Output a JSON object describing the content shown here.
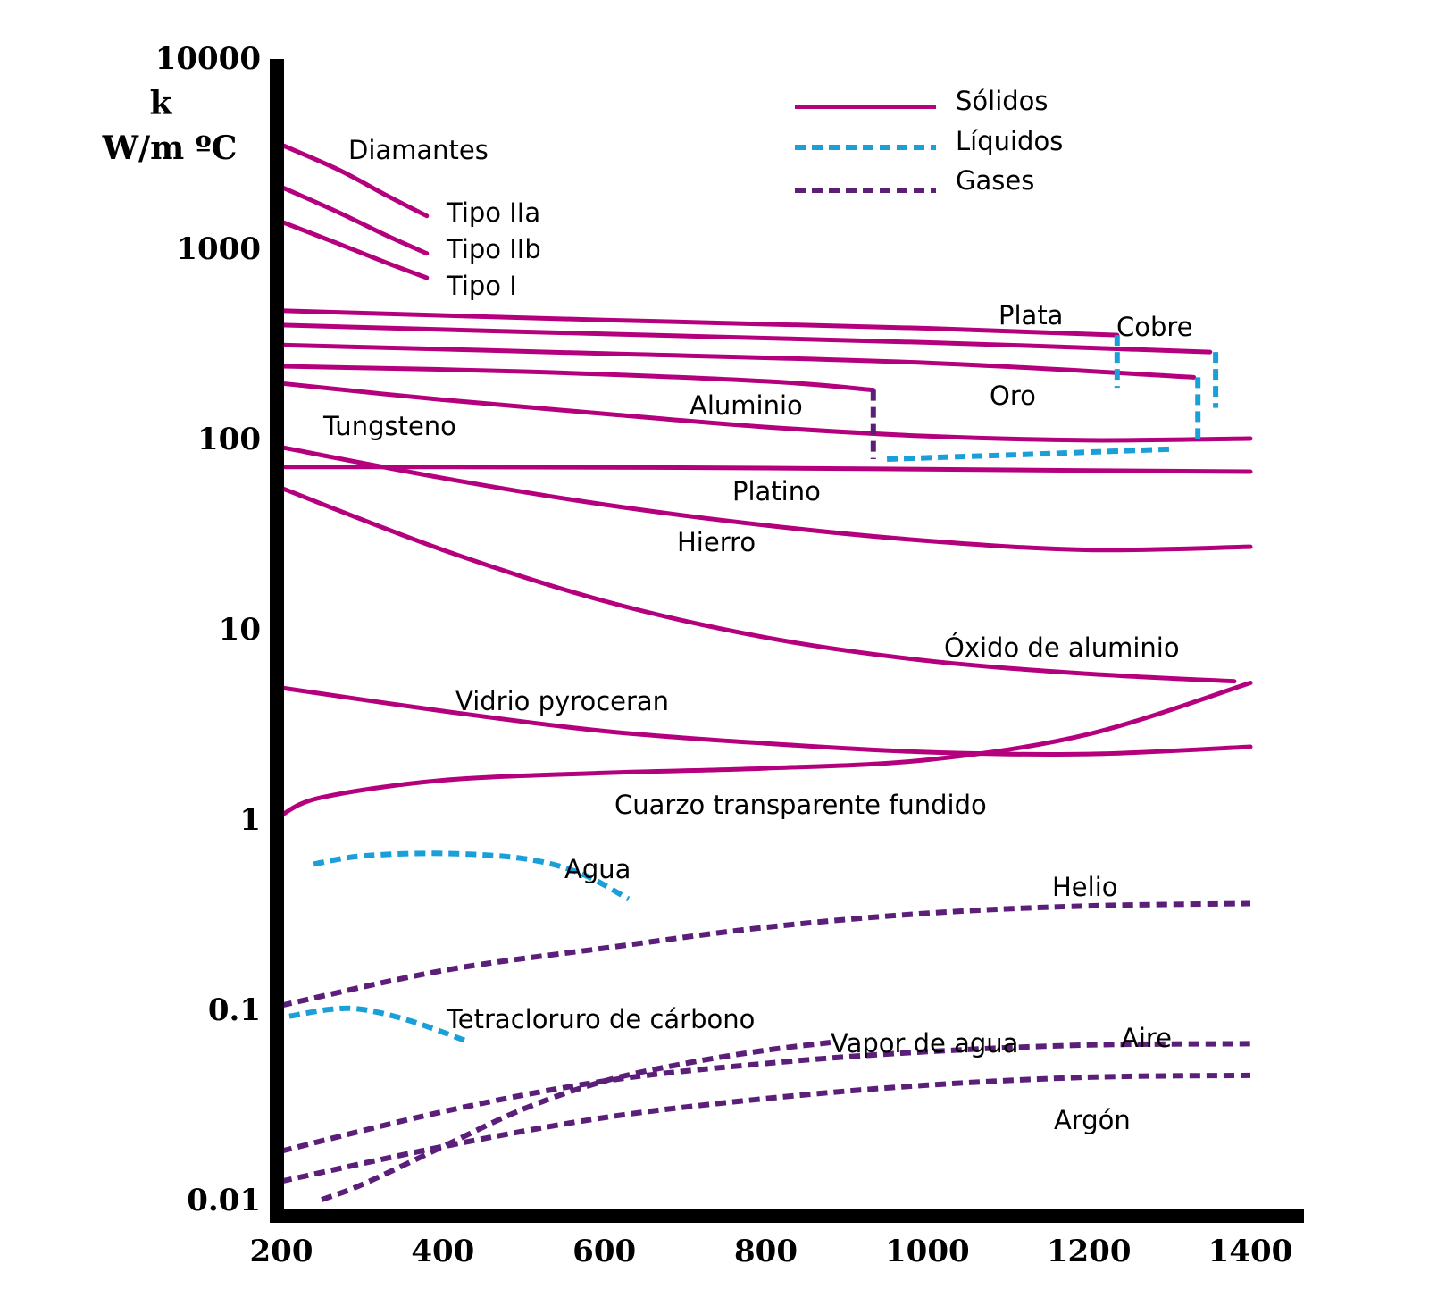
{
  "chart_data": {
    "type": "line",
    "title": "",
    "xlabel": "",
    "ylabel_line1": "k",
    "ylabel_line2": "W/m ºC",
    "y_scale": "log",
    "xlim": [
      200,
      1400
    ],
    "ylim": [
      0.01,
      10000
    ],
    "x_ticks": [
      200,
      400,
      600,
      800,
      1000,
      1200,
      1400
    ],
    "x_tick_labels": [
      "200",
      "400",
      "600",
      "800",
      "1000",
      "1200",
      "1400"
    ],
    "y_ticks": [
      0.01,
      0.1,
      1,
      10,
      100,
      1000,
      10000
    ],
    "y_tick_labels": [
      "0.01",
      "0.1",
      "1",
      "10",
      "100",
      "1000",
      "10000"
    ],
    "grid": false,
    "legend_position": "top-right",
    "legend": [
      {
        "label": "Sólidos",
        "kind": "solid"
      },
      {
        "label": "Líquidos",
        "kind": "liquid"
      },
      {
        "label": "Gases",
        "kind": "gas"
      }
    ],
    "colors": {
      "solid": "#b5007e",
      "liquid": "#1b9fd9",
      "gas": "#5b1f7a",
      "axis": "#000000"
    },
    "series": [
      {
        "name": "Tipo IIa",
        "kind": "solid",
        "x": [
          200,
          270,
          330,
          380
        ],
        "y": [
          3500,
          2600,
          1900,
          1480
        ]
      },
      {
        "name": "Tipo IIb",
        "kind": "solid",
        "x": [
          200,
          270,
          330,
          380
        ],
        "y": [
          2100,
          1550,
          1170,
          940
        ]
      },
      {
        "name": "Tipo I",
        "kind": "solid",
        "x": [
          200,
          270,
          330,
          380
        ],
        "y": [
          1380,
          1060,
          840,
          700
        ]
      },
      {
        "name": "Plata",
        "kind": "solid",
        "x": [
          200,
          600,
          1000,
          1235
        ],
        "y": [
          470,
          420,
          380,
          350
        ]
      },
      {
        "name": "Cobre",
        "kind": "solid",
        "x": [
          200,
          600,
          1000,
          1350
        ],
        "y": [
          395,
          355,
          320,
          285
        ]
      },
      {
        "name": "Oro",
        "kind": "solid",
        "x": [
          200,
          600,
          1000,
          1330
        ],
        "y": [
          310,
          280,
          250,
          210
        ]
      },
      {
        "name": "Aluminio",
        "kind": "solid",
        "x": [
          200,
          500,
          800,
          933
        ],
        "y": [
          240,
          225,
          200,
          180
        ]
      },
      {
        "name": "Tungsteno",
        "kind": "solid",
        "x": [
          200,
          400,
          600,
          800,
          1000,
          1200,
          1400
        ],
        "y": [
          195,
          160,
          135,
          115,
          103,
          98,
          100
        ]
      },
      {
        "name": "Platino",
        "kind": "solid",
        "x": [
          200,
          400,
          800,
          1200,
          1400
        ],
        "y": [
          71,
          71,
          70,
          68,
          67
        ]
      },
      {
        "name": "Hierro",
        "kind": "solid",
        "x": [
          200,
          400,
          600,
          800,
          1000,
          1200,
          1400
        ],
        "y": [
          90,
          62,
          45,
          35,
          29,
          26,
          27
        ]
      },
      {
        "name": "Óxido de aluminio",
        "kind": "solid",
        "x": [
          200,
          400,
          600,
          800,
          1000,
          1200,
          1380
        ],
        "y": [
          55,
          26,
          14,
          9,
          6.8,
          5.8,
          5.3
        ]
      },
      {
        "name": "Vidrio pyroceran",
        "kind": "solid",
        "x": [
          200,
          400,
          600,
          800,
          1000,
          1200,
          1400
        ],
        "y": [
          4.9,
          3.7,
          2.9,
          2.5,
          2.25,
          2.2,
          2.4
        ]
      },
      {
        "name": "Cuarzo transparente fundido",
        "kind": "solid",
        "x": [
          200,
          250,
          400,
          600,
          800,
          1000,
          1200,
          1400
        ],
        "y": [
          1.05,
          1.3,
          1.6,
          1.75,
          1.85,
          2.05,
          2.8,
          5.2
        ]
      },
      {
        "name": "Agua",
        "kind": "liquid",
        "x": [
          240,
          300,
          400,
          500,
          570,
          630
        ],
        "y": [
          0.58,
          0.64,
          0.66,
          0.62,
          0.52,
          0.38
        ]
      },
      {
        "name": "Tetracloruro de cárbono",
        "kind": "liquid",
        "x": [
          210,
          260,
          300,
          360,
          430
        ],
        "y": [
          0.092,
          0.1,
          0.1,
          0.087,
          0.068
        ]
      },
      {
        "name": "Helio",
        "kind": "gas",
        "x": [
          200,
          400,
          600,
          800,
          1000,
          1200,
          1400
        ],
        "y": [
          0.105,
          0.16,
          0.21,
          0.27,
          0.32,
          0.35,
          0.36
        ]
      },
      {
        "name": "Vapor de agua",
        "kind": "gas",
        "x": [
          250,
          300,
          400,
          500,
          600,
          700,
          800,
          880
        ],
        "y": [
          0.01,
          0.012,
          0.019,
          0.03,
          0.042,
          0.052,
          0.061,
          0.067
        ]
      },
      {
        "name": "Aire",
        "kind": "gas",
        "x": [
          200,
          400,
          600,
          800,
          1000,
          1200,
          1400
        ],
        "y": [
          0.018,
          0.029,
          0.042,
          0.052,
          0.06,
          0.065,
          0.066
        ]
      },
      {
        "name": "Argón",
        "kind": "gas",
        "x": [
          200,
          400,
          600,
          800,
          1000,
          1200,
          1400
        ],
        "y": [
          0.0125,
          0.019,
          0.027,
          0.034,
          0.04,
          0.044,
          0.045
        ]
      }
    ],
    "connectors": [
      {
        "of": "Plata",
        "kind": "liquid",
        "x": [
          1235,
          1235
        ],
        "y": [
          350,
          185
        ]
      },
      {
        "of": "Cobre",
        "kind": "liquid",
        "x": [
          1357,
          1357
        ],
        "y": [
          285,
          145
        ]
      },
      {
        "of": "Oro",
        "kind": "liquid",
        "x": [
          1335,
          1335
        ],
        "y": [
          210,
          100
        ]
      },
      {
        "of": "Aluminio",
        "kind": "gas",
        "x": [
          933,
          933
        ],
        "y": [
          180,
          78
        ]
      },
      {
        "of": "Aluminio",
        "kind": "liquid",
        "x": [
          950,
          1100,
          1300
        ],
        "y": [
          78,
          82,
          88
        ]
      }
    ],
    "annotations": [
      "Diamantes"
    ]
  }
}
